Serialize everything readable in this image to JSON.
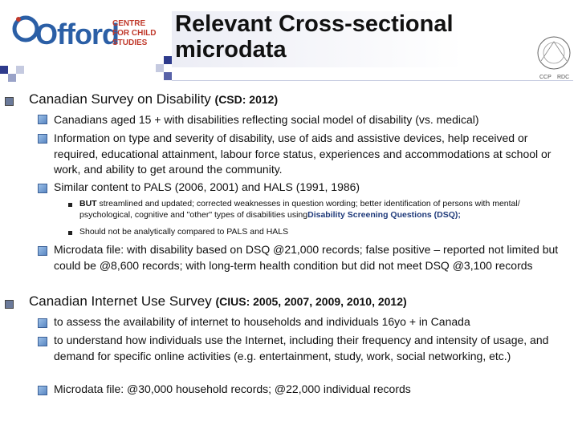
{
  "header": {
    "logo_word": "Offord",
    "logo_lines": [
      "CENTRE",
      "FOR CHILD",
      "STUDIES"
    ],
    "title": "Relevant Cross-sectional microdata",
    "seal_text": [
      "CCP",
      "RDC"
    ]
  },
  "sections": [
    {
      "heading": "Canadian Survey on Disability",
      "heading_sub": "(CSD: 2012)",
      "items": [
        "Canadians aged 15 + with disabilities reflecting social model of disability (vs. medical)",
        "Information on type and severity of disability, use of aids and assistive devices, help received or required, educational attainment, labour force status, experiences and accommodations at school or work, and ability to get around the community.",
        "Similar content to PALS (2006, 2001) and HALS (1991, 1986)"
      ],
      "subitems": [
        {
          "lead": "BUT",
          "text": " streamlined and updated; corrected weaknesses in question wording;  better identification of persons with mental/ psychological, cognitive and \"other\" types of disabilities using",
          "emph": "Disability Screening Questions (DSQ);"
        },
        {
          "lead": "",
          "text": "Should not be analytically compared to PALS and HALS",
          "emph": ""
        }
      ],
      "after": "Microdata file: with disability based on DSQ  @21,000 records; false positive – reported not limited but could be @8,600 records; with long-term health condition but did not meet DSQ @3,100 records"
    },
    {
      "heading": "Canadian Internet  Use Survey",
      "heading_sub": "(CIUS: 2005, 2007, 2009, 2010, 2012)",
      "items": [
        "to assess the availability of internet to households and individuals 16yo + in Canada",
        "to understand how individuals use the Internet, including their frequency and intensity of usage, and demand for specific online activities (e.g. entertainment, study, work, social networking, etc.)",
        "Microdata file: @30,000 household records; @22,000 individual records"
      ]
    }
  ]
}
